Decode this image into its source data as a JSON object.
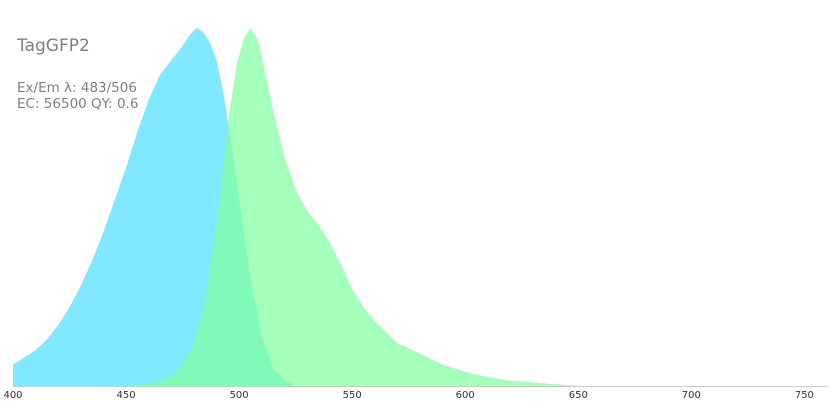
{
  "chart_data": {
    "type": "area",
    "title": "TagGFP2",
    "info_lines": [
      "Ex/Em λ: 483/506",
      "EC: 56500  QY: 0.6"
    ],
    "xlabel": "",
    "ylabel": "",
    "xlim": [
      400,
      760
    ],
    "ylim": [
      0,
      1
    ],
    "x_ticks": [
      400,
      450,
      500,
      550,
      600,
      650,
      700,
      750
    ],
    "grid": false,
    "series": [
      {
        "color": "#80e8ff",
        "x": [
          400,
          405,
          410,
          415,
          420,
          425,
          430,
          435,
          440,
          445,
          450,
          455,
          460,
          465,
          470,
          475,
          478,
          481,
          484,
          487,
          490,
          493,
          496,
          500,
          505,
          510,
          515,
          520,
          525
        ],
        "values": [
          0.06,
          0.08,
          0.1,
          0.13,
          0.17,
          0.22,
          0.28,
          0.35,
          0.43,
          0.52,
          0.61,
          0.71,
          0.8,
          0.87,
          0.91,
          0.95,
          0.98,
          1.0,
          0.99,
          0.96,
          0.91,
          0.82,
          0.7,
          0.52,
          0.3,
          0.14,
          0.05,
          0.015,
          0.0
        ]
      },
      {
        "color": "#80ffa0",
        "x": [
          440,
          450,
          460,
          465,
          470,
          475,
          480,
          485,
          490,
          493,
          496,
          499,
          502,
          505,
          508,
          510,
          515,
          520,
          525,
          530,
          535,
          540,
          545,
          550,
          555,
          560,
          570,
          580,
          590,
          600,
          610,
          620,
          630,
          640,
          650
        ],
        "values": [
          0.0,
          0.002,
          0.008,
          0.015,
          0.03,
          0.06,
          0.12,
          0.24,
          0.45,
          0.62,
          0.78,
          0.9,
          0.97,
          1.0,
          0.97,
          0.92,
          0.77,
          0.64,
          0.55,
          0.49,
          0.45,
          0.4,
          0.34,
          0.27,
          0.22,
          0.18,
          0.12,
          0.09,
          0.06,
          0.04,
          0.025,
          0.015,
          0.01,
          0.005,
          0.0
        ]
      }
    ]
  }
}
